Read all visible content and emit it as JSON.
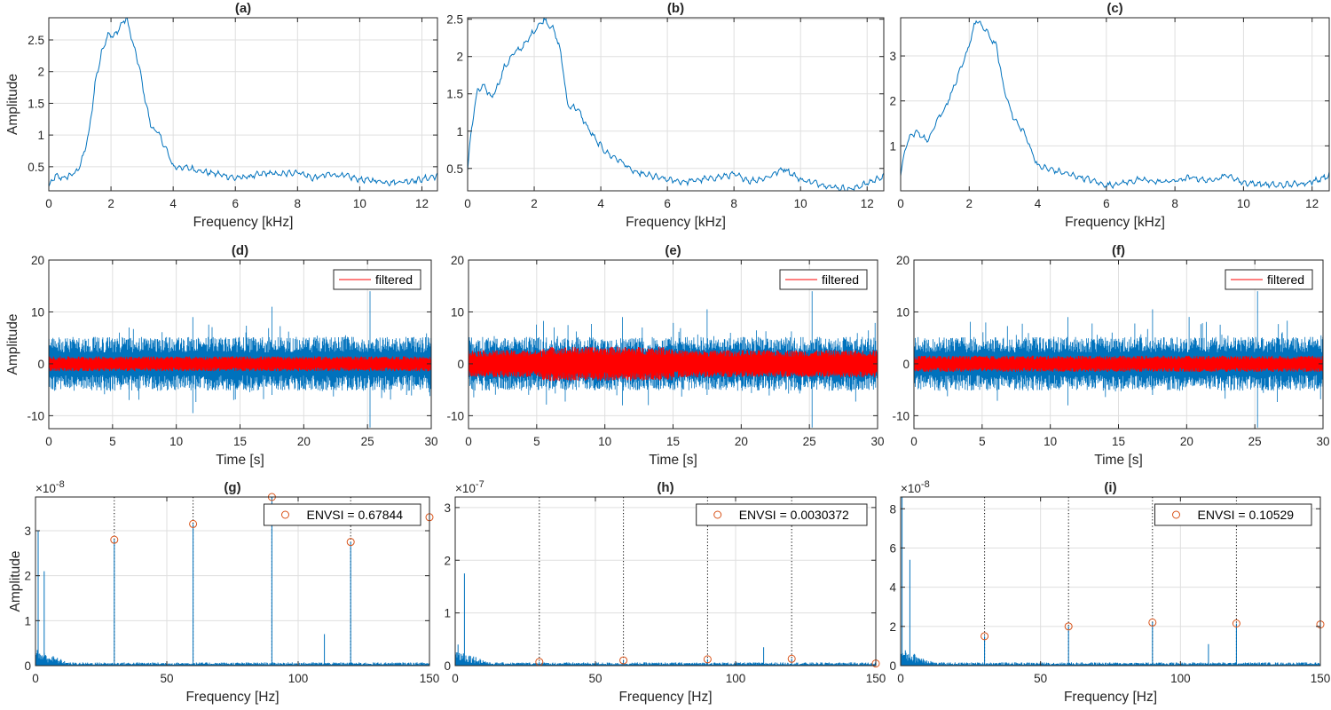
{
  "colors": {
    "spectrum": "#0072BD",
    "filtered": "#FF0000",
    "marker": "#D95319",
    "grid": "#DFDFDF",
    "axis": "#262626"
  },
  "chart_data": [
    {
      "id": "a",
      "type": "line",
      "title": "(a)",
      "xlabel": "Frequency [kHz]",
      "ylabel": "Amplitude",
      "xlim": [
        0,
        12.5
      ],
      "ylim": [
        0.12,
        2.85
      ],
      "xticks": [
        0,
        2,
        4,
        6,
        8,
        10,
        12
      ],
      "yticks": [
        0.5,
        1,
        1.5,
        2,
        2.5
      ],
      "series": [
        {
          "x": [
            0,
            0.2,
            0.5,
            0.9,
            1.1,
            1.3,
            1.5,
            1.7,
            1.9,
            2.1,
            2.3,
            2.5,
            2.7,
            2.9,
            3.1,
            3.3,
            3.5,
            3.8,
            4.0,
            4.5,
            5.0,
            5.5,
            6.0,
            6.5,
            7.0,
            7.5,
            8.0,
            8.5,
            9.0,
            9.5,
            10.0,
            10.5,
            11.0,
            11.5,
            12.0,
            12.5
          ],
          "y": [
            0.18,
            0.35,
            0.32,
            0.42,
            0.65,
            1.05,
            1.85,
            2.3,
            2.6,
            2.55,
            2.72,
            2.85,
            2.45,
            2.1,
            1.55,
            1.12,
            1.05,
            0.75,
            0.5,
            0.48,
            0.42,
            0.38,
            0.32,
            0.35,
            0.4,
            0.38,
            0.42,
            0.32,
            0.38,
            0.36,
            0.3,
            0.28,
            0.25,
            0.27,
            0.3,
            0.36
          ]
        }
      ]
    },
    {
      "id": "b",
      "type": "line",
      "title": "(b)",
      "xlabel": "Frequency [kHz]",
      "ylabel": "",
      "xlim": [
        0,
        12.5
      ],
      "ylim": [
        0.2,
        2.52
      ],
      "xticks": [
        0,
        2,
        4,
        6,
        8,
        10,
        12
      ],
      "yticks": [
        0.5,
        1,
        1.5,
        2,
        2.5
      ],
      "series": [
        {
          "x": [
            0,
            0.1,
            0.3,
            0.5,
            0.7,
            0.9,
            1.1,
            1.4,
            1.7,
            2.0,
            2.3,
            2.6,
            2.8,
            3.0,
            3.3,
            3.6,
            3.9,
            4.2,
            4.6,
            5.0,
            5.5,
            6.0,
            6.5,
            7.0,
            7.5,
            8.0,
            8.5,
            9.0,
            9.5,
            10.0,
            10.5,
            11.0,
            11.5,
            12.0,
            12.5
          ],
          "y": [
            0.45,
            1.0,
            1.55,
            1.6,
            1.45,
            1.6,
            1.85,
            2.05,
            2.15,
            2.35,
            2.5,
            2.35,
            2.05,
            1.35,
            1.3,
            1.05,
            0.85,
            0.7,
            0.6,
            0.45,
            0.4,
            0.35,
            0.32,
            0.35,
            0.38,
            0.42,
            0.33,
            0.38,
            0.5,
            0.35,
            0.3,
            0.25,
            0.22,
            0.3,
            0.4
          ]
        }
      ]
    },
    {
      "id": "c",
      "type": "line",
      "title": "(c)",
      "xlabel": "Frequency [kHz]",
      "ylabel": "",
      "xlim": [
        0,
        12.5
      ],
      "ylim": [
        0.0,
        3.85
      ],
      "xticks": [
        0,
        2,
        4,
        6,
        8,
        10,
        12
      ],
      "yticks": [
        1,
        2,
        3
      ],
      "series": [
        {
          "x": [
            0,
            0.1,
            0.3,
            0.5,
            0.8,
            1.0,
            1.3,
            1.6,
            1.9,
            2.2,
            2.5,
            2.8,
            3.0,
            3.3,
            3.6,
            4.0,
            4.5,
            5.0,
            5.5,
            6.0,
            6.5,
            7.0,
            7.5,
            8.0,
            8.5,
            9.0,
            9.5,
            10.0,
            10.5,
            11.0,
            11.5,
            12.0,
            12.5
          ],
          "y": [
            0.3,
            0.85,
            1.25,
            1.3,
            1.1,
            1.5,
            1.85,
            2.4,
            3.0,
            3.8,
            3.55,
            3.2,
            2.3,
            1.6,
            1.3,
            0.55,
            0.45,
            0.35,
            0.25,
            0.12,
            0.18,
            0.25,
            0.2,
            0.22,
            0.3,
            0.22,
            0.35,
            0.18,
            0.15,
            0.12,
            0.15,
            0.2,
            0.35
          ]
        }
      ]
    },
    {
      "id": "d",
      "type": "line",
      "title": "(d)",
      "xlabel": "Time [s]",
      "ylabel": "Amplitude",
      "xlim": [
        0,
        30
      ],
      "ylim": [
        -12.5,
        20
      ],
      "xticks": [
        0,
        5,
        10,
        15,
        20,
        25,
        30
      ],
      "yticks": [
        -10,
        0,
        10,
        20
      ],
      "legend": "top-right",
      "series": [
        {
          "name": "",
          "envelope": [
            -4,
            4
          ],
          "spikes": [
            [
              25.2,
              14,
              -12.3
            ],
            [
              11.3,
              9,
              -9.5
            ],
            [
              17.5,
              11,
              -6
            ],
            [
              6.3,
              7,
              -7
            ]
          ]
        },
        {
          "name": "filtered",
          "envelope": [
            -1.2,
            1.2
          ]
        }
      ]
    },
    {
      "id": "e",
      "type": "line",
      "title": "(e)",
      "xlabel": "Time [s]",
      "ylabel": "",
      "xlim": [
        0,
        30
      ],
      "ylim": [
        -12.5,
        20
      ],
      "xticks": [
        0,
        5,
        10,
        15,
        20,
        25,
        30
      ],
      "yticks": [
        -10,
        0,
        10,
        20
      ],
      "legend": "top-right",
      "series": [
        {
          "name": "",
          "envelope": [
            -4,
            4
          ],
          "spikes": [
            [
              25.2,
              14,
              -12.3
            ],
            [
              11.3,
              9,
              -8
            ],
            [
              17.5,
              10.5,
              -6
            ]
          ]
        },
        {
          "name": "filtered",
          "envelope": [
            -2.2,
            2.2
          ]
        }
      ]
    },
    {
      "id": "f",
      "type": "line",
      "title": "(f)",
      "xlabel": "Time [s]",
      "ylabel": "",
      "xlim": [
        0,
        30
      ],
      "ylim": [
        -12.5,
        20
      ],
      "xticks": [
        0,
        5,
        10,
        15,
        20,
        25,
        30
      ],
      "yticks": [
        -10,
        0,
        10,
        20
      ],
      "legend": "top-right",
      "series": [
        {
          "name": "",
          "envelope": [
            -4,
            4
          ],
          "spikes": [
            [
              25.2,
              14,
              -12.3
            ],
            [
              11.3,
              9,
              -8
            ],
            [
              17.5,
              10.5,
              -6
            ]
          ]
        },
        {
          "name": "filtered",
          "envelope": [
            -1.3,
            1.3
          ]
        }
      ]
    },
    {
      "id": "g",
      "type": "line",
      "title": "(g)",
      "xlabel": "Frequency [Hz]",
      "ylabel": "Amplitude",
      "xlim": [
        0,
        150
      ],
      "ylim": [
        0,
        3.75
      ],
      "xticks": [
        0,
        50,
        100,
        150
      ],
      "yticks": [
        0,
        1,
        2,
        3
      ],
      "exponent": "×10",
      "exponent_power": "-8",
      "legend": "top-right",
      "harmonics": [
        30,
        60,
        90,
        120,
        150
      ],
      "peaks": [
        [
          1,
          3.0
        ],
        [
          3.3,
          2.1
        ],
        [
          30,
          2.8
        ],
        [
          60,
          3.15
        ],
        [
          90,
          3.75
        ],
        [
          110,
          0.7
        ],
        [
          120,
          2.75
        ],
        [
          150,
          3.3
        ]
      ],
      "series": [
        {
          "name": "ENVSI = 0.67844",
          "x": [
            30,
            60,
            90,
            120,
            150
          ],
          "y": [
            2.8,
            3.15,
            3.75,
            2.75,
            3.3
          ]
        }
      ]
    },
    {
      "id": "h",
      "type": "line",
      "title": "(h)",
      "xlabel": "Frequency [Hz]",
      "ylabel": "",
      "xlim": [
        0,
        150
      ],
      "ylim": [
        0,
        3.2
      ],
      "xticks": [
        0,
        50,
        100,
        150
      ],
      "yticks": [
        0,
        1,
        2,
        3
      ],
      "exponent": "×10",
      "exponent_power": "-7",
      "legend": "top-right",
      "harmonics": [
        30,
        60,
        90,
        120,
        150
      ],
      "peaks": [
        [
          3.3,
          1.75
        ],
        [
          1,
          0.4
        ],
        [
          30,
          0.07
        ],
        [
          60,
          0.1
        ],
        [
          90,
          0.12
        ],
        [
          110,
          0.35
        ],
        [
          120,
          0.13
        ],
        [
          150,
          0.04
        ]
      ],
      "series": [
        {
          "name": "ENVSI = 0.0030372",
          "x": [
            30,
            60,
            90,
            120,
            150
          ],
          "y": [
            0.07,
            0.1,
            0.12,
            0.13,
            0.04
          ]
        }
      ]
    },
    {
      "id": "i",
      "type": "line",
      "title": "(i)",
      "xlabel": "Frequency [Hz]",
      "ylabel": "",
      "xlim": [
        0,
        150
      ],
      "ylim": [
        0,
        8.6
      ],
      "xticks": [
        0,
        50,
        100,
        150
      ],
      "yticks": [
        0,
        2,
        4,
        6,
        8
      ],
      "exponent": "×10",
      "exponent_power": "-8",
      "legend": "top-right",
      "harmonics": [
        30,
        60,
        90,
        120,
        150
      ],
      "peaks": [
        [
          0.5,
          8.6
        ],
        [
          3.3,
          5.4
        ],
        [
          30,
          1.5
        ],
        [
          60,
          2.0
        ],
        [
          90,
          2.2
        ],
        [
          110,
          1.1
        ],
        [
          120,
          2.15
        ],
        [
          150,
          2.1
        ]
      ],
      "series": [
        {
          "name": "ENVSI = 0.10529",
          "x": [
            30,
            60,
            90,
            120,
            150
          ],
          "y": [
            1.5,
            2.0,
            2.2,
            2.15,
            2.1
          ]
        }
      ]
    }
  ]
}
